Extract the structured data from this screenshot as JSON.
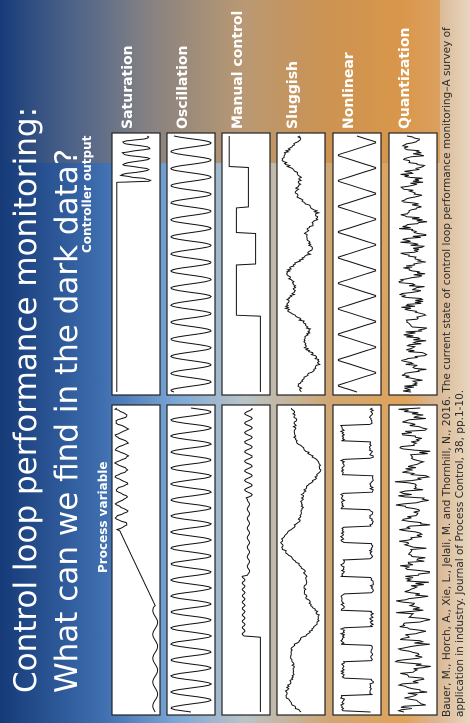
{
  "title": "Control loop performance monitoring: What can we find in the dark data?",
  "column_headers": [
    "Process variable",
    "Controller output"
  ],
  "rows": [
    {
      "label": "Saturation"
    },
    {
      "label": "Oscillation"
    },
    {
      "label": "Manual control"
    },
    {
      "label": "Sluggish"
    },
    {
      "label": "Nonlinear"
    },
    {
      "label": "Quantization"
    }
  ],
  "citation": "Bauer, M., Horch, A., Xie, L., Jelali, M. and Thornhill, N., 2016. The current state of control loop performance monitoring–A survey of application in industry. Journal of Process Control, 38, pp.1-10."
}
